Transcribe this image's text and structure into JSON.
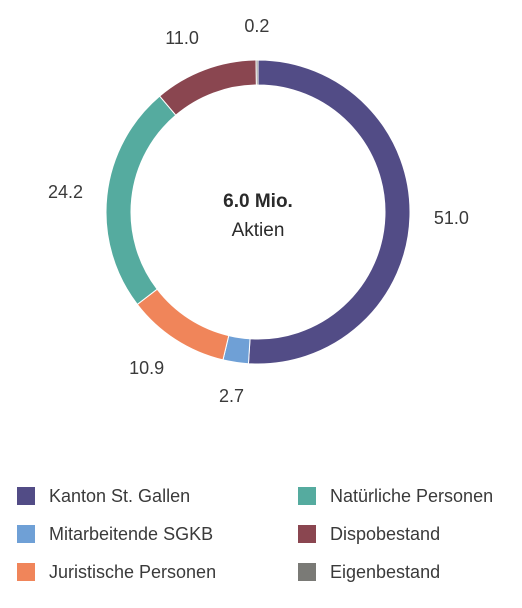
{
  "chart_data": {
    "type": "pie",
    "donut": true,
    "center_text": [
      "6.0 Mio.",
      "Aktien"
    ],
    "categories": [
      "Kanton St. Gallen",
      "Mitarbeitende SGKB",
      "Juristische Personen",
      "Natürliche Personen",
      "Dispobestand",
      "Eigenbestand"
    ],
    "values": [
      51.0,
      2.7,
      10.9,
      24.2,
      11.0,
      0.2
    ],
    "value_labels": [
      "51.0",
      "2.7",
      "10.9",
      "24.2",
      "11.0",
      "0.2"
    ],
    "colors": [
      "#524c86",
      "#6fa0d6",
      "#f0855a",
      "#55ab9f",
      "#8a4650",
      "#7a7a76"
    ],
    "legend_placement": "bottom"
  }
}
